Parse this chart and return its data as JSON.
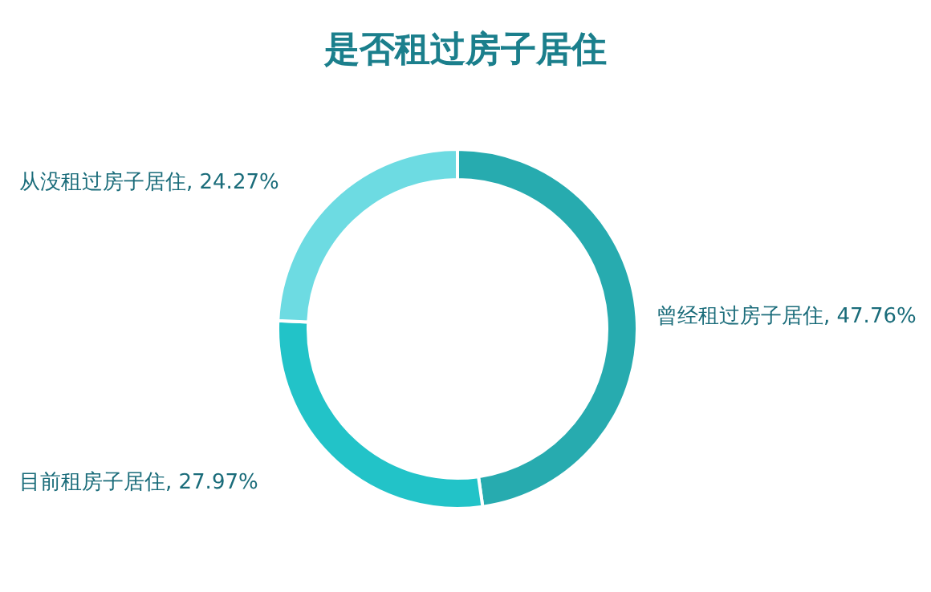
{
  "chart_data": {
    "type": "donut",
    "title": "是否租过房子居住",
    "categories": [
      "曾经租过房子居住",
      "目前租房子居住",
      "从没租过房子居住"
    ],
    "values": [
      47.76,
      27.97,
      24.27
    ],
    "value_labels": [
      ", 47.76%",
      ", 27.97%",
      ", 24.27%"
    ],
    "colors": [
      "#27abaf",
      "#22c3c8",
      "#6ddbe2"
    ]
  }
}
